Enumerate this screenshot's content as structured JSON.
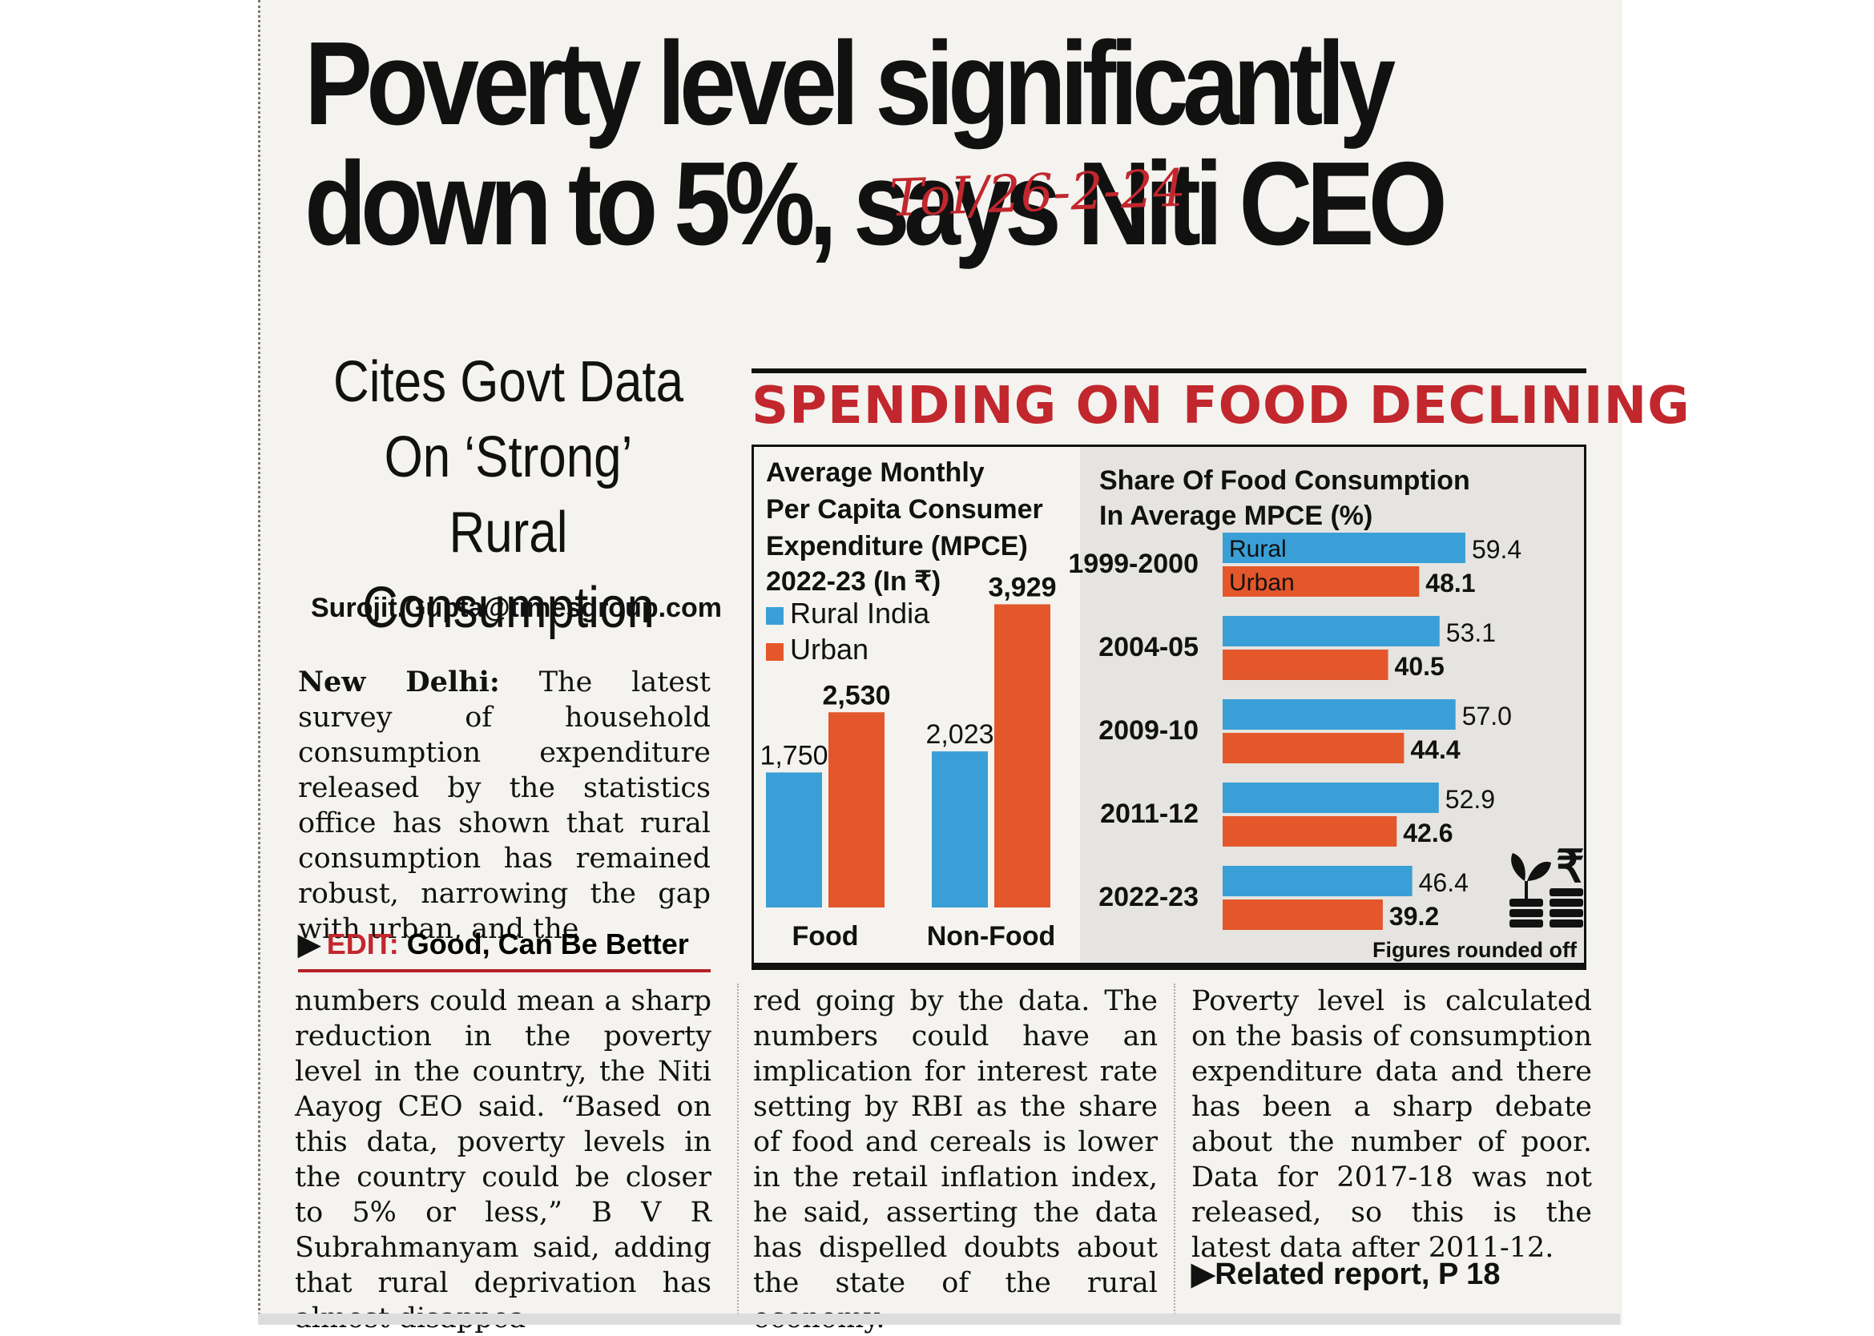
{
  "headline": {
    "line1": "Poverty level significantly",
    "line2": "down to 5%, says Niti CEO"
  },
  "handwritten_note": "ToI/26-2-24",
  "subhead": [
    "Cites Govt Data",
    "On ‘Strong’ Rural",
    "Consumption"
  ],
  "byline": "Surojit.Gupta@timesgroup.com",
  "lead": {
    "dateline": "New Delhi:",
    "text": "The latest survey of household consumption expenditure released by the statistics office has shown that rural consumption has remained robust, narrowing the gap with urban, and the"
  },
  "edit_ref": {
    "label": "EDIT:",
    "text": "Good, Can Be Better"
  },
  "columns": {
    "col1": "numbers could mean a sharp reduction in the poverty level in the country, the Niti Aayog CEO said. “Based on this data, poverty levels in the country could be closer to 5% or less,” B V R Subrahmanyam said, adding that rural deprivation has almost disappea-",
    "col2": "red going by the data. The numbers could have an implication for interest rate setting by RBI as the share of food and cereals is lower in the retail inflation index, he said, asserting the data has dispelled doubts about the state of the rural economy.",
    "col3": "Poverty level is calculated on the basis of consumption expenditure data and there has been a sharp debate about the number of poor. Data for 2017-18 was not released, so this is the latest data after 2011-12."
  },
  "related": "Related report, P 18",
  "infobox_title": "SPENDING ON FOOD DECLINING",
  "colors": {
    "rural": "#3a9fd6",
    "urban": "#e3572a",
    "accent_red": "#c1272d"
  },
  "chart_data": [
    {
      "type": "bar",
      "title": [
        "Average Monthly",
        "Per Capita Consumer",
        "Expenditure (MPCE)",
        "2022-23 (In ₹)"
      ],
      "categories": [
        "Food",
        "Non-Food"
      ],
      "series": [
        {
          "name": "Rural India",
          "values": [
            1750,
            2023
          ],
          "labels": [
            "1,750",
            "2,023"
          ]
        },
        {
          "name": "Urban",
          "values": [
            2530,
            3929
          ],
          "labels": [
            "2,530",
            "3,929"
          ]
        }
      ],
      "ylim": [
        0,
        4100
      ],
      "legend": "top-left"
    },
    {
      "type": "bar",
      "orientation": "horizontal",
      "title": [
        "Share Of Food Consumption",
        "In Average MPCE (%)"
      ],
      "categories": [
        "1999-2000",
        "2004-05",
        "2009-10",
        "2011-12",
        "2022-23"
      ],
      "series": [
        {
          "name": "Rural",
          "values": [
            59.4,
            53.1,
            57.0,
            52.9,
            46.4
          ],
          "labels": [
            "59.4",
            "53.1",
            "57.0",
            "52.9",
            "46.4"
          ]
        },
        {
          "name": "Urban",
          "values": [
            48.1,
            40.5,
            44.4,
            42.6,
            39.2
          ],
          "labels": [
            "48.1",
            "40.5",
            "44.4",
            "42.6",
            "39.2"
          ]
        }
      ],
      "xlim": [
        0,
        60
      ],
      "note": "Figures rounded off"
    }
  ]
}
